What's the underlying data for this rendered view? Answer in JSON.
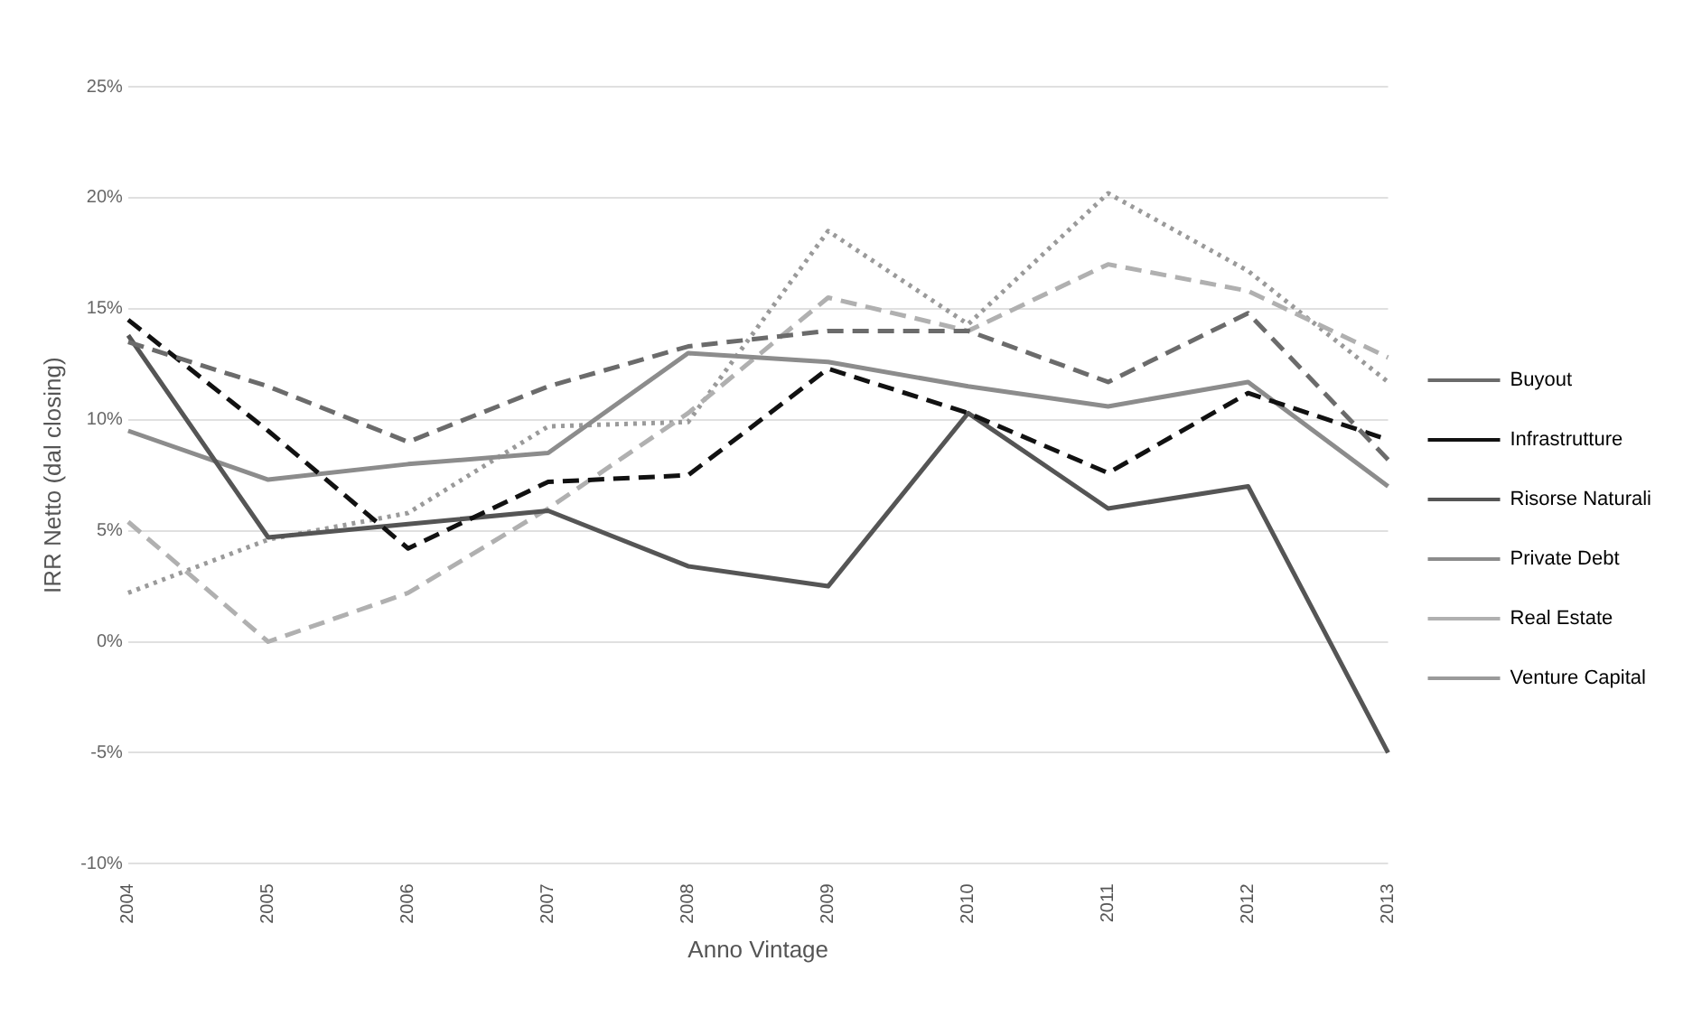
{
  "chart_data": {
    "type": "line",
    "xlabel": "Anno Vintage",
    "ylabel": "IRR Netto (dal closing)",
    "categories": [
      "2004",
      "2005",
      "2006",
      "2007",
      "2008",
      "2009",
      "2010",
      "2011",
      "2012",
      "2013"
    ],
    "series": [
      {
        "name": "Buyout",
        "color": "#6b6b6b",
        "line_style": "dashed",
        "values": [
          13.5,
          11.5,
          9,
          11.5,
          13.3,
          14,
          14,
          11.7,
          14.8,
          8.2
        ]
      },
      {
        "name": "Infrastrutture",
        "color": "#111111",
        "line_style": "dashed",
        "values": [
          14.5,
          9.5,
          4.2,
          7.2,
          7.5,
          12.3,
          10.3,
          7.6,
          11.2,
          9.1
        ]
      },
      {
        "name": "Risorse Naturali",
        "color": "#555555",
        "line_style": "solid",
        "values": [
          13.8,
          4.7,
          5.3,
          5.9,
          3.4,
          2.5,
          10.3,
          6,
          7,
          -5
        ]
      },
      {
        "name": "Private Debt",
        "color": "#8c8c8c",
        "line_style": "solid",
        "values": [
          9.5,
          7.3,
          8,
          8.5,
          13,
          12.6,
          11.5,
          10.6,
          11.7,
          7
        ]
      },
      {
        "name": "Real Estate",
        "color": "#b0b0b0",
        "line_style": "dashed",
        "values": [
          5.4,
          0,
          2.2,
          6,
          10.3,
          15.5,
          14,
          17,
          15.8,
          12.8
        ]
      },
      {
        "name": "Venture Capital",
        "color": "#9a9a9a",
        "line_style": "dotted",
        "values": [
          2.2,
          4.6,
          5.8,
          9.7,
          9.9,
          18.5,
          14.3,
          20.2,
          16.7,
          11.7
        ]
      }
    ],
    "ylim": [
      -10,
      25
    ],
    "yticks": [
      {
        "value": -10,
        "label": "-10%"
      },
      {
        "value": -5,
        "label": "-5%"
      },
      {
        "value": 0,
        "label": "0%"
      },
      {
        "value": 5,
        "label": "5%"
      },
      {
        "value": 10,
        "label": "10%"
      },
      {
        "value": 15,
        "label": "15%"
      },
      {
        "value": 20,
        "label": "20%"
      },
      {
        "value": 25,
        "label": "25%"
      }
    ],
    "grid": "y",
    "legend": "right",
    "marker": "none"
  }
}
